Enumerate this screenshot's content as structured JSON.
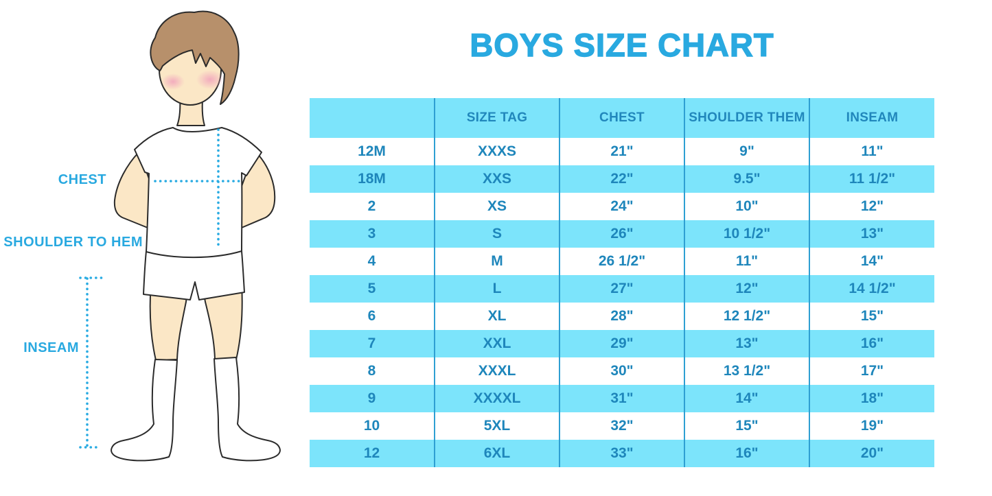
{
  "title": "BOYS SIZE CHART",
  "diagram": {
    "labels": {
      "chest": "CHEST",
      "shoulder_to_hem": "SHOULDER TO HEM",
      "inseam": "INSEAM"
    }
  },
  "chart_data": {
    "type": "table",
    "title": "BOYS SIZE CHART",
    "columns": [
      "",
      "SIZE TAG",
      "CHEST",
      "SHOULDER THEM",
      "INSEAM"
    ],
    "rows": [
      [
        "12M",
        "XXXS",
        "21\"",
        "9\"",
        "11\""
      ],
      [
        "18M",
        "XXS",
        "22\"",
        "9.5\"",
        "11 1/2\""
      ],
      [
        "2",
        "XS",
        "24\"",
        "10\"",
        "12\""
      ],
      [
        "3",
        "S",
        "26\"",
        "10 1/2\"",
        "13\""
      ],
      [
        "4",
        "M",
        "26 1/2\"",
        "11\"",
        "14\""
      ],
      [
        "5",
        "L",
        "27\"",
        "12\"",
        "14 1/2\""
      ],
      [
        "6",
        "XL",
        "28\"",
        "12 1/2\"",
        "15\""
      ],
      [
        "7",
        "XXL",
        "29\"",
        "13\"",
        "16\""
      ],
      [
        "8",
        "XXXL",
        "30\"",
        "13 1/2\"",
        "17\""
      ],
      [
        "9",
        "XXXXL",
        "31\"",
        "14\"",
        "18\""
      ],
      [
        "10",
        "5XL",
        "32\"",
        "15\"",
        "19\""
      ],
      [
        "12",
        "6XL",
        "33\"",
        "16\"",
        "20\""
      ]
    ],
    "row_highlight": "alternating-cyan",
    "legend_position": "none"
  },
  "colors": {
    "title_blue": "#29A9E0",
    "label_blue": "#29A9E0",
    "table_text_blue": "#1E86BB",
    "row_cyan": "#7CE4FB",
    "divider_blue": "#2E9FD2",
    "dotted_line_cyan": "#29ABE2",
    "skin": "#FBE7C6",
    "hair_brown": "#B7906B",
    "blush_pink": "#F2A9BD",
    "outline": "#2B2B2B"
  }
}
